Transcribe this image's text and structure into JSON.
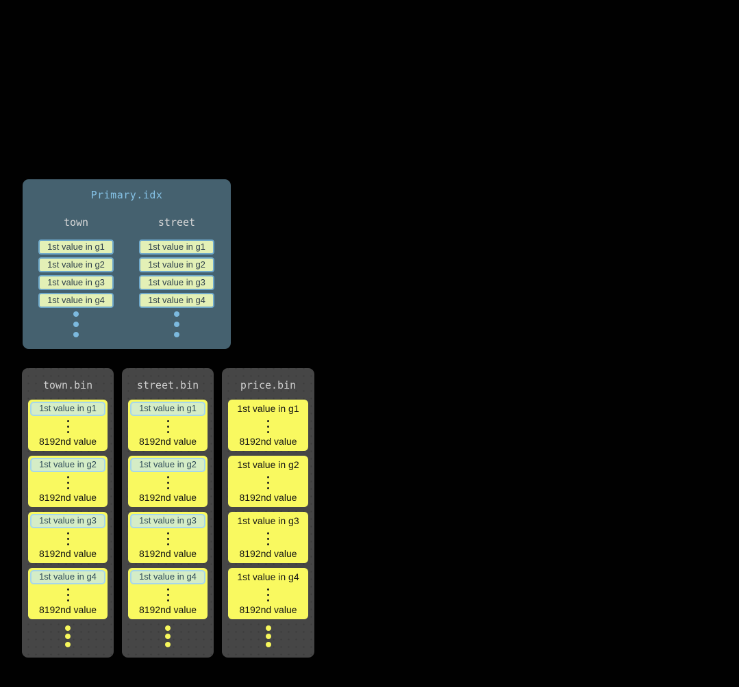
{
  "colors": {
    "canvas_bg": "#010101",
    "primary_panel_bg": "#45616F",
    "primary_title": "#85C2E6",
    "primary_box_bg": "#E3F0B6",
    "primary_box_border": "#6EA8CA",
    "blue_dot": "#7CB9DE",
    "bin_panel_bg": "#464646",
    "granule_bg": "#F9F960",
    "highlight_bg": "#D5EDC6",
    "highlight_border": "#A6D7EA",
    "yellow_dot": "#F7F75C"
  },
  "primary_panel": {
    "title": "Primary.idx",
    "columns": [
      {
        "header": "town",
        "entries": [
          "1st value in g1",
          "1st value in g2",
          "1st value in g3",
          "1st value in g4"
        ]
      },
      {
        "header": "street",
        "entries": [
          "1st value in g1",
          "1st value in g2",
          "1st value in g3",
          "1st value in g4"
        ]
      }
    ]
  },
  "bin_panels": [
    {
      "title": "town.bin",
      "highlighted": true,
      "groups": [
        {
          "first": "1st value in g1",
          "last": "8192nd value"
        },
        {
          "first": "1st value in g2",
          "last": "8192nd value"
        },
        {
          "first": "1st value in g3",
          "last": "8192nd value"
        },
        {
          "first": "1st value in g4",
          "last": "8192nd value"
        }
      ]
    },
    {
      "title": "street.bin",
      "highlighted": true,
      "groups": [
        {
          "first": "1st value in g1",
          "last": "8192nd value"
        },
        {
          "first": "1st value in g2",
          "last": "8192nd value"
        },
        {
          "first": "1st value in g3",
          "last": "8192nd value"
        },
        {
          "first": "1st value in g4",
          "last": "8192nd value"
        }
      ]
    },
    {
      "title": "price.bin",
      "highlighted": false,
      "groups": [
        {
          "first": "1st value in g1",
          "last": "8192nd value"
        },
        {
          "first": "1st value in g2",
          "last": "8192nd value"
        },
        {
          "first": "1st value in g3",
          "last": "8192nd value"
        },
        {
          "first": "1st value in g4",
          "last": "8192nd value"
        }
      ]
    }
  ]
}
